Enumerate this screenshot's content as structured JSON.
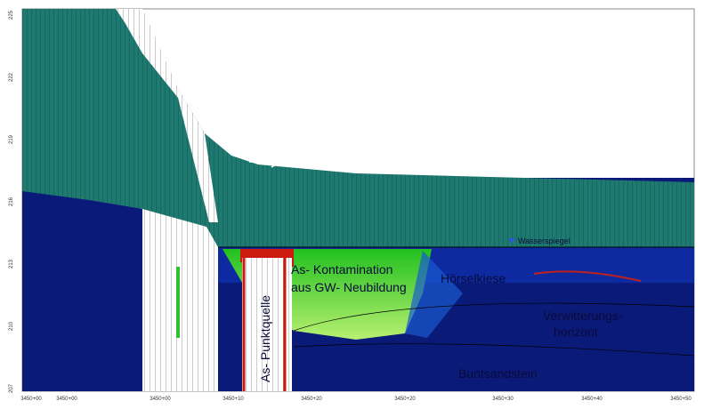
{
  "labels": {
    "contamination": [
      "As- Kontamination",
      "aus GW- Neubildung"
    ],
    "gravel": "Hörselkiese",
    "weathering": [
      "Verwitterungs-",
      "horizont"
    ],
    "sandstone": "Buntsandstein",
    "point_source": "As- Punktquelle",
    "water_table": "Wasserspiegel"
  },
  "y_axis_ticks": [
    "225",
    "222",
    "219",
    "216",
    "213",
    "210",
    "207"
  ],
  "x_axis_ticks": [
    "3450+00",
    "3450+00",
    "3450+00",
    "3450+10",
    "3450+20",
    "3450+20",
    "3450+30",
    "3450+40",
    "3450+50"
  ]
}
